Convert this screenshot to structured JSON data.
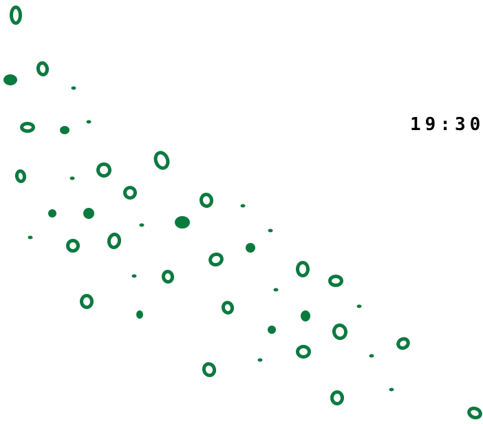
{
  "clock": {
    "time": "19:30"
  }
}
